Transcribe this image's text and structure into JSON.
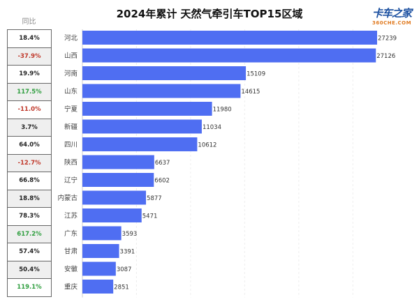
{
  "chart_data": {
    "type": "bar",
    "orientation": "horizontal",
    "title": "2024年累计 天然气牵引车TOP15区域",
    "categories": [
      "河北",
      "山西",
      "河南",
      "山东",
      "宁夏",
      "新疆",
      "四川",
      "陕西",
      "辽宁",
      "内蒙古",
      "江苏",
      "广东",
      "甘肃",
      "安徽",
      "重庆"
    ],
    "values": [
      27239,
      27126,
      15109,
      14615,
      11980,
      11034,
      10612,
      6637,
      6602,
      5877,
      5471,
      3593,
      3391,
      3087,
      2851
    ],
    "yoy_header": "同比",
    "yoy": [
      "18.4%",
      "-37.9%",
      "19.9%",
      "117.5%",
      "-11.0%",
      "3.7%",
      "64.0%",
      "-12.7%",
      "66.8%",
      "18.8%",
      "78.3%",
      "617.2%",
      "57.4%",
      "50.4%",
      "119.1%"
    ],
    "bar_color": "#4f6ef2",
    "xlim": [
      0,
      28000
    ],
    "grid": true
  },
  "logo": {
    "main": "卡车之家",
    "sub": "360CHE.COM"
  },
  "colors": {
    "negative": "#c0392b",
    "high_growth": "#2e9e3e",
    "normal": "#222222"
  }
}
